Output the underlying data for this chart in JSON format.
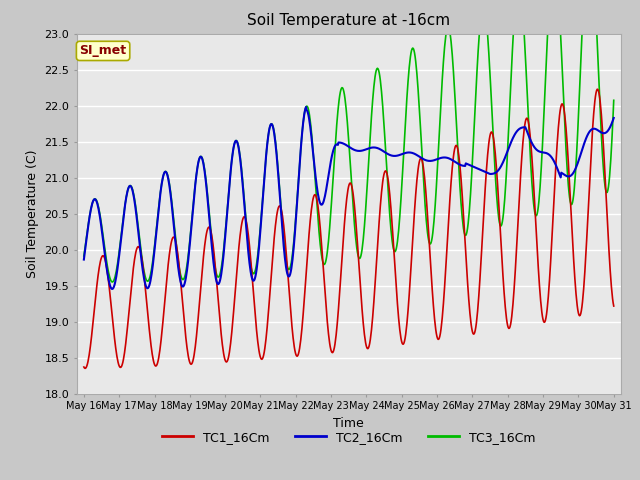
{
  "title": "Soil Temperature at -16cm",
  "xlabel": "Time",
  "ylabel": "Soil Temperature (C)",
  "ylim": [
    18.0,
    23.0
  ],
  "yticks": [
    18.0,
    18.5,
    19.0,
    19.5,
    20.0,
    20.5,
    21.0,
    21.5,
    22.0,
    22.5,
    23.0
  ],
  "x_tick_labels": [
    "May 16",
    "May 17",
    "May 18",
    "May 19",
    "May 20",
    "May 21",
    "May 22",
    "May 23",
    "May 24",
    "May 25",
    "May 26",
    "May 27",
    "May 28",
    "May 29",
    "May 30",
    "May 31"
  ],
  "legend_labels": [
    "TC1_16Cm",
    "TC2_16Cm",
    "TC3_16Cm"
  ],
  "line_colors": [
    "#cc0000",
    "#0000cc",
    "#00bb00"
  ],
  "annotation_text": "SI_met",
  "annotation_facecolor": "#ffffcc",
  "annotation_edgecolor": "#aaaa00",
  "annotation_textcolor": "#880000",
  "fig_facecolor": "#c8c8c8",
  "plot_facecolor": "#e8e8e8",
  "grid_color": "#ffffff",
  "title_fontsize": 11,
  "axis_label_fontsize": 9,
  "tick_fontsize": 8,
  "legend_fontsize": 9
}
